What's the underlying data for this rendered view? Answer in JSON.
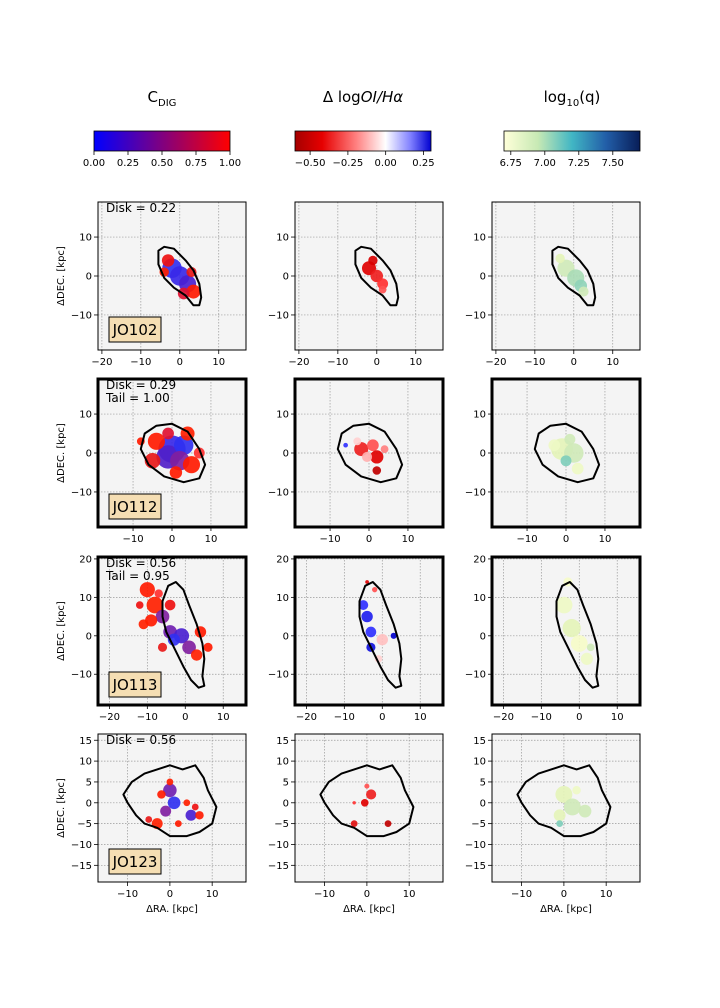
{
  "figure": {
    "column_titles": [
      {
        "main": "C",
        "sub": "DIG"
      },
      {
        "main": "Δ log",
        "italic": "OI/Hα"
      },
      {
        "main": "log",
        "sub": "10",
        "tail": "(q)"
      }
    ],
    "colorbars": [
      {
        "name": "cdig",
        "cmap": "bwr-blue-red",
        "ticks": [
          "0.00",
          "0.25",
          "0.50",
          "0.75",
          "1.00"
        ],
        "range": [
          0,
          1
        ],
        "tickvals": [
          0,
          0.25,
          0.5,
          0.75,
          1.0
        ]
      },
      {
        "name": "doi",
        "cmap": "red-white-blue",
        "ticks": [
          "−0.50",
          "−0.25",
          "0.00",
          "0.25"
        ],
        "range": [
          -0.6,
          0.3
        ],
        "tickvals": [
          -0.5,
          -0.25,
          0.0,
          0.25
        ]
      },
      {
        "name": "logq",
        "cmap": "YlGnBu",
        "ticks": [
          "6.75",
          "7.00",
          "7.25",
          "7.50"
        ],
        "range": [
          6.7,
          7.7
        ],
        "tickvals": [
          6.75,
          7.0,
          7.25,
          7.5
        ]
      }
    ],
    "xlabel": "ΔRA. [kpc]",
    "ylabel": "ΔDEC. [kpc]"
  },
  "chart_data": [
    {
      "type": "map-panels",
      "galaxy": "JO102",
      "annotations": [
        "Disk = 0.22"
      ],
      "highlighted_frame": false,
      "xlim": [
        -21,
        17
      ],
      "ylim": [
        -19,
        19
      ],
      "xticks": [
        -20,
        -10,
        0,
        10
      ],
      "yticks": [
        -10,
        0,
        10
      ],
      "xticklabels": [
        "−20",
        "−10",
        "0",
        "10"
      ],
      "yticklabels": [
        "−10",
        "0",
        "10"
      ],
      "contour_kpc": [
        [
          -5.5,
          6.5
        ],
        [
          -4,
          7.5
        ],
        [
          -1.5,
          7
        ],
        [
          1.5,
          4
        ],
        [
          3.5,
          1.5
        ],
        [
          5,
          -2
        ],
        [
          5.5,
          -5.5
        ],
        [
          5,
          -7.5
        ],
        [
          3.5,
          -7.5
        ],
        [
          1.5,
          -5
        ],
        [
          -1.5,
          -3
        ],
        [
          -4,
          -0.5
        ],
        [
          -5.5,
          3
        ]
      ],
      "blobs": {
        "cdig": [
          [
            -2,
            2,
            2.5,
            "#3030f0"
          ],
          [
            0,
            0,
            2.5,
            "#3828e8"
          ],
          [
            2,
            -2,
            2.2,
            "#4a20d0"
          ],
          [
            -3,
            4,
            1.6,
            "#ee1010"
          ],
          [
            3.5,
            -4,
            1.8,
            "#ff1a00"
          ],
          [
            -4,
            1,
            1.2,
            "#ff2000"
          ],
          [
            1,
            -4.5,
            1.5,
            "#e01030"
          ],
          [
            3,
            1,
            1.3,
            "#e81818"
          ]
        ],
        "doi": [
          [
            -2,
            2,
            1.8,
            "#e00000"
          ],
          [
            0,
            0,
            1.6,
            "#ee2020"
          ],
          [
            1.5,
            -2,
            1.4,
            "#ff3030"
          ],
          [
            -1,
            4,
            1.2,
            "#d80000"
          ],
          [
            1.5,
            -3.5,
            1.0,
            "#ff5050"
          ]
        ],
        "logq": [
          [
            -2,
            2,
            2.2,
            "#cfe9b8"
          ],
          [
            0.5,
            -0.5,
            2.2,
            "#a9dbb5"
          ],
          [
            1.8,
            -2.5,
            1.6,
            "#8fd2b8"
          ],
          [
            -3.5,
            4.5,
            1.2,
            "#e4f3b8"
          ],
          [
            2.5,
            -4,
            1.3,
            "#cfe9b8"
          ]
        ]
      }
    },
    {
      "type": "map-panels",
      "galaxy": "JO112",
      "annotations": [
        "Disk = 0.29",
        "Tail = 1.00"
      ],
      "highlighted_frame": true,
      "xlim": [
        -19,
        19
      ],
      "ylim": [
        -19,
        19
      ],
      "xticks": [
        -10,
        0,
        10
      ],
      "yticks": [
        -10,
        0,
        10
      ],
      "xticklabels": [
        "−10",
        "0",
        "10"
      ],
      "yticklabels": [
        "−10",
        "0",
        "10"
      ],
      "contour_kpc": [
        [
          -7,
          5
        ],
        [
          -4,
          7
        ],
        [
          0,
          7.5
        ],
        [
          4,
          5.5
        ],
        [
          7,
          1
        ],
        [
          8.5,
          -3
        ],
        [
          7,
          -6.5
        ],
        [
          3,
          -7.5
        ],
        [
          -2,
          -6
        ],
        [
          -6,
          -3
        ],
        [
          -8,
          1
        ]
      ],
      "blobs": {
        "cdig": [
          [
            0,
            1,
            3.5,
            "#3828e8"
          ],
          [
            -1,
            -1,
            3,
            "#5020c8"
          ],
          [
            3,
            2,
            2.5,
            "#3030f0"
          ],
          [
            2,
            -2,
            2.5,
            "#8020a0"
          ],
          [
            -4,
            3,
            2.2,
            "#ff1a00"
          ],
          [
            5,
            -3,
            2.2,
            "#ff1a00"
          ],
          [
            -5,
            -2,
            2,
            "#e81818"
          ],
          [
            4,
            5,
            1.8,
            "#ff2000"
          ],
          [
            -1,
            5,
            1.5,
            "#e01030"
          ],
          [
            1,
            -5,
            1.6,
            "#ff1a00"
          ],
          [
            -8,
            3,
            1,
            "#ff1a00"
          ],
          [
            7,
            0,
            1.4,
            "#ff3030"
          ]
        ],
        "doi": [
          [
            -2,
            1,
            1.8,
            "#ee2020"
          ],
          [
            1,
            2,
            1.5,
            "#ff5050"
          ],
          [
            2,
            -1,
            1.7,
            "#e00000"
          ],
          [
            -0.5,
            -1,
            1.3,
            "#ffb0b0"
          ],
          [
            2,
            -4.5,
            1.1,
            "#c00000"
          ],
          [
            -3,
            3,
            1.0,
            "#ffd0d0"
          ],
          [
            -6,
            2,
            0.6,
            "#3030ff"
          ],
          [
            4,
            1,
            1.0,
            "#ff8080"
          ]
        ],
        "logq": [
          [
            -1,
            1,
            2.8,
            "#e4f3b8"
          ],
          [
            2,
            0,
            2.5,
            "#cfe9b8"
          ],
          [
            0,
            -2,
            1.4,
            "#7fcdbb"
          ],
          [
            -3,
            2,
            1.5,
            "#eef8c4"
          ],
          [
            3,
            -4,
            1.5,
            "#eef8c4"
          ],
          [
            1,
            3.5,
            1.4,
            "#cfe9b8"
          ]
        ]
      }
    },
    {
      "type": "map-panels",
      "galaxy": "JO113",
      "annotations": [
        "Disk = 0.56",
        "Tail = 0.95"
      ],
      "highlighted_frame": true,
      "xlim": [
        -23,
        16
      ],
      "ylim": [
        -18,
        20.5
      ],
      "xticks": [
        -20,
        -10,
        0,
        10
      ],
      "yticks": [
        -10,
        0,
        10,
        20
      ],
      "xticklabels": [
        "−20",
        "−10",
        "0",
        "10"
      ],
      "yticklabels": [
        "−10",
        "0",
        "10",
        "20"
      ],
      "contour_kpc": [
        [
          -4.5,
          13
        ],
        [
          -2.5,
          14
        ],
        [
          -0.5,
          12
        ],
        [
          1,
          8
        ],
        [
          3,
          3
        ],
        [
          4.5,
          -2
        ],
        [
          5,
          -6
        ],
        [
          4.5,
          -10.5
        ],
        [
          5,
          -13
        ],
        [
          3.5,
          -13.5
        ],
        [
          1.5,
          -11.5
        ],
        [
          -0.5,
          -8
        ],
        [
          -3,
          -3
        ],
        [
          -5,
          1
        ],
        [
          -6,
          5
        ],
        [
          -6,
          9
        ]
      ],
      "blobs": {
        "cdig": [
          [
            -10,
            12,
            2,
            "#ff1a00"
          ],
          [
            -8,
            8,
            2.2,
            "#ff2000"
          ],
          [
            -6,
            5,
            1.8,
            "#8020a0"
          ],
          [
            -9,
            4,
            1.6,
            "#ff1a00"
          ],
          [
            -4,
            1,
            1.8,
            "#7020b0"
          ],
          [
            -1,
            0,
            2,
            "#4a20d0"
          ],
          [
            -3,
            -1,
            1.6,
            "#3030f0"
          ],
          [
            1,
            -3,
            1.8,
            "#8020a0"
          ],
          [
            -11,
            3,
            1.3,
            "#ff2000"
          ],
          [
            -4,
            8,
            1.4,
            "#ee1010"
          ],
          [
            4,
            1,
            1.5,
            "#ff1a00"
          ],
          [
            3,
            -5,
            1.5,
            "#ff2000"
          ],
          [
            -6,
            -3,
            1.2,
            "#e81818"
          ],
          [
            6,
            -3,
            1.2,
            "#ff1a00"
          ],
          [
            -12,
            8,
            1,
            "#ee1010"
          ],
          [
            -7,
            11,
            1.1,
            "#ff3030"
          ]
        ],
        "doi": [
          [
            -5,
            8,
            1.3,
            "#3030ff"
          ],
          [
            -4,
            5,
            1.5,
            "#2020ee"
          ],
          [
            -3,
            1,
            1.4,
            "#3030ff"
          ],
          [
            -3,
            -3,
            1.2,
            "#1010dd"
          ],
          [
            3,
            0,
            0.8,
            "#0000cc"
          ],
          [
            0,
            -1,
            1.5,
            "#ffc0c0"
          ],
          [
            -1,
            -6,
            1.0,
            "#ffd0d0"
          ],
          [
            -2,
            12,
            0.7,
            "#ff5050"
          ],
          [
            -4,
            14,
            0.5,
            "#e00000"
          ]
        ],
        "logq": [
          [
            -4,
            8,
            2.2,
            "#eef8c4"
          ],
          [
            -2,
            2,
            2.4,
            "#e4f3b8"
          ],
          [
            0,
            -2,
            2.2,
            "#f5fbc8"
          ],
          [
            2,
            -6,
            1.6,
            "#eef8c4"
          ],
          [
            -3,
            14,
            1.2,
            "#f5fbc8"
          ],
          [
            3,
            -3,
            1,
            "#cfe9b8"
          ]
        ]
      }
    },
    {
      "type": "map-panels",
      "galaxy": "JO123",
      "annotations": [
        "Disk = 0.56"
      ],
      "highlighted_frame": false,
      "xlim": [
        -17,
        18
      ],
      "ylim": [
        -19,
        16.5
      ],
      "xticks": [
        -10,
        0,
        10
      ],
      "yticks": [
        -15,
        -10,
        -5,
        0,
        5,
        10,
        15
      ],
      "xticklabels": [
        "−10",
        "0",
        "10"
      ],
      "yticklabels": [
        "−15",
        "−10",
        "−5",
        "0",
        "5",
        "10",
        "15"
      ],
      "contour_kpc": [
        [
          -9,
          5
        ],
        [
          -6,
          7
        ],
        [
          -3,
          8
        ],
        [
          0,
          9
        ],
        [
          3,
          8
        ],
        [
          6,
          9
        ],
        [
          8,
          6
        ],
        [
          9,
          3
        ],
        [
          11,
          -1
        ],
        [
          10,
          -5
        ],
        [
          7,
          -7
        ],
        [
          4,
          -8
        ],
        [
          0,
          -8
        ],
        [
          -3,
          -6
        ],
        [
          -6,
          -5
        ],
        [
          -8,
          -3
        ],
        [
          -10,
          0
        ],
        [
          -11,
          2
        ]
      ],
      "blobs": {
        "cdig": [
          [
            0,
            3,
            1.6,
            "#7020b0"
          ],
          [
            1,
            0,
            1.5,
            "#3030f0"
          ],
          [
            -1,
            -2,
            1.3,
            "#8020a0"
          ],
          [
            -2,
            2,
            1.0,
            "#ff1a00"
          ],
          [
            -3,
            -5,
            1.3,
            "#ff2000"
          ],
          [
            5,
            -3,
            1.3,
            "#4a20d0"
          ],
          [
            7,
            -3,
            1.0,
            "#ff1a00"
          ],
          [
            6,
            -1,
            0.8,
            "#ee1010"
          ],
          [
            4,
            0,
            0.8,
            "#ff2000"
          ],
          [
            0,
            5,
            0.8,
            "#ff2000"
          ],
          [
            -5,
            -4,
            0.8,
            "#e81818"
          ],
          [
            2,
            -5,
            0.8,
            "#ff1a00"
          ]
        ],
        "doi": [
          [
            1,
            2,
            1.2,
            "#ee2020"
          ],
          [
            -0.5,
            0,
            0.9,
            "#e00000"
          ],
          [
            -3,
            -5,
            0.8,
            "#e01010"
          ],
          [
            5,
            -5,
            0.8,
            "#c00000"
          ],
          [
            -3,
            0,
            0.4,
            "#ff3030"
          ],
          [
            0,
            4,
            0.6,
            "#ff5050"
          ]
        ],
        "logq": [
          [
            0,
            2,
            2,
            "#e4f3b8"
          ],
          [
            2,
            -1,
            2,
            "#cfe9b8"
          ],
          [
            -1,
            -3,
            1.4,
            "#e4f3b8"
          ],
          [
            -1,
            -5,
            0.8,
            "#7fcdbb"
          ],
          [
            5,
            -2,
            1.5,
            "#cfe9b8"
          ],
          [
            3,
            3,
            1,
            "#eef8c4"
          ]
        ]
      }
    }
  ]
}
